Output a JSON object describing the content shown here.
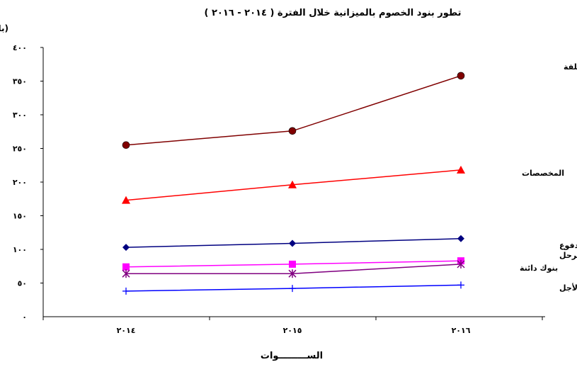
{
  "chart_data": {
    "type": "line",
    "title": "تطور بنود الخصوم بالميزانية خلال الفترة ( ٢٠١٤ - ٢٠١٦ )",
    "ylabel": "(بالمليار جنيه)",
    "xlabel": "الســـــــــوات",
    "ylim": [
      0,
      400
    ],
    "yticks": [
      0,
      50,
      100,
      150,
      200,
      250,
      300,
      350,
      400
    ],
    "ytick_labels": [
      "٠",
      "٥٠",
      "١٠٠",
      "١٥٠",
      "٢٠٠",
      "٢٥٠",
      "٣٠٠",
      "٣٥٠",
      "٤٠٠"
    ],
    "categories": [
      "٢٠١٤",
      "٢٠١٥",
      "٢٠١٦"
    ],
    "grid": false,
    "legend": "inline-right",
    "series": [
      {
        "name": "دائنون وحسابات دائنة مختلفة",
        "values": [
          255,
          276,
          358
        ],
        "color": "#800000",
        "marker": "circle"
      },
      {
        "name": "المخصصات",
        "values": [
          173,
          196,
          218
        ],
        "color": "#ff0000",
        "marker": "triangle"
      },
      {
        "name": "رأس المال المدفوع",
        "values": [
          103,
          109,
          116
        ],
        "color": "#000080",
        "marker": "diamond"
      },
      {
        "name": "الإحتياطيات والفائض المرحل",
        "values": [
          74,
          78,
          83
        ],
        "color": "#ff00ff",
        "marker": "square"
      },
      {
        "name": "بنوك دائنة",
        "values": [
          64,
          64,
          78
        ],
        "color": "#800080",
        "marker": "star"
      },
      {
        "name": "التزامات طويلة الأجل",
        "values": [
          38,
          42,
          47
        ],
        "color": "#0000ff",
        "marker": "plus"
      }
    ]
  }
}
